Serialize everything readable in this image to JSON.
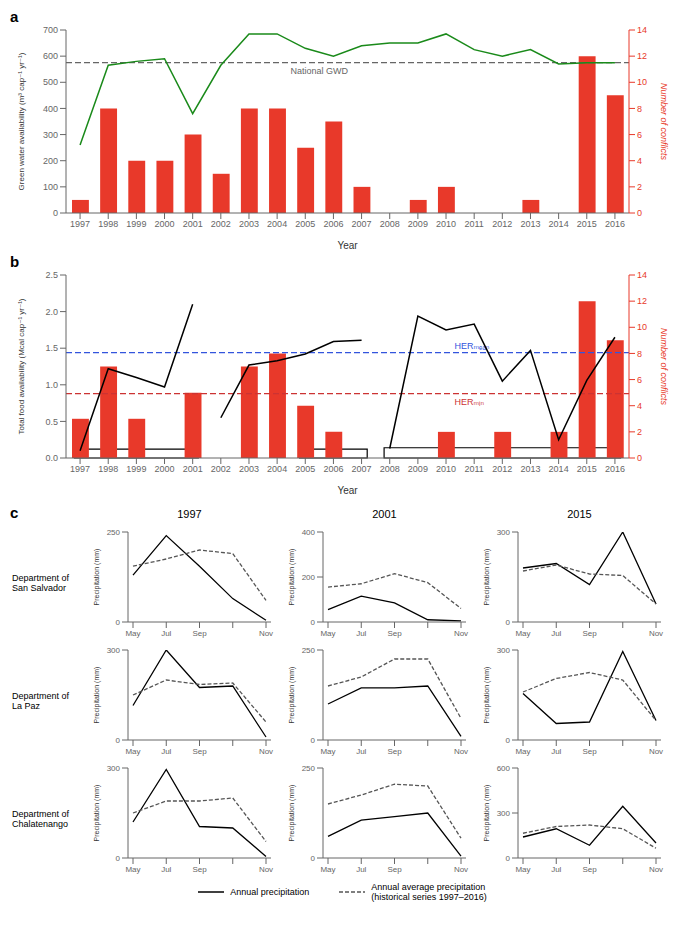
{
  "chart_data": [
    {
      "type": "bar",
      "panel_label": "a",
      "x": [
        1997,
        1998,
        1999,
        2000,
        2001,
        2002,
        2003,
        2004,
        2005,
        2006,
        2007,
        2008,
        2009,
        2010,
        2011,
        2012,
        2013,
        2014,
        2015,
        2016
      ],
      "xlim": [
        1996.5,
        2016.5
      ],
      "xticks": [
        1997,
        1998,
        1999,
        2000,
        2001,
        2002,
        2003,
        2004,
        2005,
        2006,
        2007,
        2008,
        2009,
        2010,
        2011,
        2012,
        2013,
        2014,
        2015,
        2016
      ],
      "xlabel": "Year",
      "ylabel": "Green water availability (m³ cap⁻¹ yr⁻¹)",
      "ylim": [
        0,
        700
      ],
      "yticks": [
        0,
        100,
        200,
        300,
        400,
        500,
        600,
        700
      ],
      "y2label": "Number of conflicts",
      "y2lim": [
        0,
        14
      ],
      "y2ticks": [
        0,
        2,
        4,
        6,
        8,
        10,
        12,
        14
      ],
      "series": [
        {
          "type": "bar",
          "axis": "y2",
          "color": "#e8392a",
          "values": [
            1,
            8,
            4,
            4,
            6,
            3,
            8,
            8,
            5,
            7,
            2,
            0,
            1,
            2,
            0,
            0,
            1,
            0,
            12,
            9
          ]
        },
        {
          "type": "line",
          "color": "#1a8a1a",
          "values": [
            260,
            565,
            580,
            590,
            380,
            565,
            685,
            685,
            630,
            600,
            640,
            650,
            650,
            685,
            625,
            600,
            625,
            570,
            575,
            575
          ]
        }
      ],
      "hlines": [
        {
          "value": 575,
          "color": "#666666",
          "line_style": "dashed",
          "label": "National GWD"
        }
      ]
    },
    {
      "type": "bar",
      "panel_label": "b",
      "x": [
        1997,
        1998,
        1999,
        2000,
        2001,
        2002,
        2003,
        2004,
        2005,
        2006,
        2007,
        2008,
        2009,
        2010,
        2011,
        2012,
        2013,
        2014,
        2015,
        2016
      ],
      "xlim": [
        1996.5,
        2016.5
      ],
      "xticks": [
        1997,
        1998,
        1999,
        2000,
        2001,
        2002,
        2003,
        2004,
        2005,
        2006,
        2007,
        2008,
        2009,
        2010,
        2011,
        2012,
        2013,
        2014,
        2015,
        2016
      ],
      "xlabel": "Year",
      "ylabel": "Total food availability (Mcal cap⁻¹ yr⁻¹)",
      "ylim": [
        0,
        2.5
      ],
      "yticks": [
        {
          "value": 0,
          "label": "0.0"
        },
        0.5,
        {
          "value": 1,
          "label": "1.0"
        },
        1.5,
        {
          "value": 2,
          "label": "2.0"
        },
        2.5
      ],
      "y2label": "Number of conflicts",
      "y2lim": [
        0,
        14
      ],
      "y2ticks": [
        0,
        2,
        4,
        6,
        8,
        10,
        12,
        14
      ],
      "series": [
        {
          "type": "bar",
          "axis": "y2",
          "color": "#e8392a",
          "values": [
            3,
            7,
            3,
            0,
            5,
            0,
            7,
            8,
            4,
            2,
            0,
            0,
            0,
            2,
            0,
            2,
            0,
            2,
            12,
            9
          ]
        },
        {
          "type": "line",
          "color": "#000000",
          "x": [
            1997,
            1998,
            1999,
            2000,
            2001
          ],
          "values": [
            0.1,
            1.22,
            1.1,
            0.97,
            2.1
          ]
        },
        {
          "type": "line",
          "color": "#000000",
          "x": [
            2002,
            2003,
            2004,
            2005,
            2006,
            2007
          ],
          "values": [
            0.55,
            1.27,
            1.33,
            1.42,
            1.59,
            1.61
          ]
        },
        {
          "type": "line",
          "color": "#000000",
          "x": [
            2008,
            2009,
            2010,
            2011,
            2012,
            2013,
            2014,
            2015,
            2016
          ],
          "values": [
            0.13,
            1.94,
            1.75,
            1.83,
            1.05,
            1.47,
            0.25,
            1.06,
            1.65
          ]
        }
      ],
      "hlines": [
        {
          "value": 1.44,
          "color": "#3355dd",
          "line_style": "dashed",
          "label": "HERₘₑₐₙ"
        },
        {
          "value": 0.88,
          "color": "#cc3333",
          "line_style": "dashed",
          "label": "HERₘᵢₙ"
        }
      ],
      "boxes": [
        {
          "x0": 1996.8,
          "x1": 2001.2,
          "y0": 0.0,
          "y1": 0.12,
          "color": "#000000"
        },
        {
          "x0": 2004.8,
          "x1": 2007.2,
          "y0": 0.0,
          "y1": 0.12,
          "color": "#000000"
        },
        {
          "x0": 2007.8,
          "x1": 2016.2,
          "y0": 0.0,
          "y1": 0.14,
          "color": "#000000"
        }
      ]
    },
    {
      "type": "line",
      "categories": [
        "May",
        "Jul",
        "Sep",
        null,
        "Nov"
      ],
      "ylabel": "Precipitation (mm)",
      "ylim": [
        0,
        250
      ],
      "yticks": [
        0,
        250
      ],
      "series": [
        {
          "name": "Annual precipitation",
          "color": "#000000",
          "line_style": "solid",
          "values": [
            130,
            240,
            155,
            65,
            5
          ]
        },
        {
          "name": "Annual average precipitation\n(historical series 1997–2016)",
          "color": "#555555",
          "line_style": "dashed",
          "values": [
            155,
            175,
            200,
            190,
            60
          ]
        }
      ]
    },
    {
      "type": "line",
      "categories": [
        "May",
        "Jul",
        "Sep",
        null,
        "Nov"
      ],
      "ylabel": "Precipitation (mm)",
      "ylim": [
        0,
        400
      ],
      "yticks": [
        0,
        200,
        400
      ],
      "series": [
        {
          "name": "Annual precipitation",
          "color": "#000000",
          "line_style": "solid",
          "values": [
            55,
            115,
            85,
            10,
            5
          ]
        },
        {
          "name": "Annual average precipitation\n(historical series 1997–2016)",
          "color": "#555555",
          "line_style": "dashed",
          "values": [
            155,
            170,
            215,
            175,
            60
          ]
        }
      ]
    },
    {
      "type": "line",
      "categories": [
        "May",
        "Jul",
        "Sep",
        null,
        "Nov"
      ],
      "ylabel": "Precipitation (mm)",
      "ylim": [
        0,
        300
      ],
      "yticks": [
        0,
        300
      ],
      "series": [
        {
          "name": "Annual precipitation",
          "color": "#000000",
          "line_style": "solid",
          "values": [
            180,
            195,
            125,
            300,
            60
          ]
        },
        {
          "name": "Annual average precipitation\n(historical series 1997–2016)",
          "color": "#555555",
          "line_style": "dashed",
          "values": [
            170,
            190,
            160,
            155,
            60
          ]
        }
      ]
    },
    {
      "type": "line",
      "categories": [
        "May",
        "Jul",
        "Sep",
        null,
        "Nov"
      ],
      "ylabel": "Precipitation (mm)",
      "ylim": [
        0,
        300
      ],
      "yticks": [
        0,
        300
      ],
      "series": [
        {
          "name": "Annual precipitation",
          "color": "#000000",
          "line_style": "solid",
          "values": [
            115,
            300,
            175,
            180,
            10
          ]
        },
        {
          "name": "Annual average precipitation\n(historical series 1997–2016)",
          "color": "#555555",
          "line_style": "dashed",
          "values": [
            150,
            200,
            185,
            190,
            60
          ]
        }
      ]
    },
    {
      "type": "line",
      "categories": [
        "May",
        "Jul",
        "Sep",
        null,
        "Nov"
      ],
      "ylabel": "Precipitation (mm)",
      "ylim": [
        0,
        250
      ],
      "yticks": [
        0,
        250
      ],
      "series": [
        {
          "name": "Annual precipitation",
          "color": "#000000",
          "line_style": "solid",
          "values": [
            100,
            145,
            145,
            150,
            10
          ]
        },
        {
          "name": "Annual average precipitation\n(historical series 1997–2016)",
          "color": "#555555",
          "line_style": "dashed",
          "values": [
            150,
            175,
            225,
            225,
            60
          ]
        }
      ]
    },
    {
      "type": "line",
      "categories": [
        "May",
        "Jul",
        "Sep",
        null,
        "Nov"
      ],
      "ylabel": "Precipitation (mm)",
      "ylim": [
        0,
        300
      ],
      "yticks": [
        0,
        300
      ],
      "series": [
        {
          "name": "Annual precipitation",
          "color": "#000000",
          "line_style": "solid",
          "values": [
            155,
            55,
            60,
            295,
            65
          ]
        },
        {
          "name": "Annual average precipitation\n(historical series 1997–2016)",
          "color": "#555555",
          "line_style": "dashed",
          "values": [
            160,
            205,
            225,
            200,
            65
          ]
        }
      ]
    },
    {
      "type": "line",
      "categories": [
        "May",
        "Jul",
        "Sep",
        null,
        "Nov"
      ],
      "ylabel": "Precipitation (mm)",
      "ylim": [
        0,
        300
      ],
      "yticks": [
        0,
        300
      ],
      "series": [
        {
          "name": "Annual precipitation",
          "color": "#000000",
          "line_style": "solid",
          "values": [
            120,
            295,
            105,
            100,
            5
          ]
        },
        {
          "name": "Annual average precipitation\n(historical series 1997–2016)",
          "color": "#555555",
          "line_style": "dashed",
          "values": [
            150,
            190,
            190,
            200,
            55
          ]
        }
      ]
    },
    {
      "type": "line",
      "categories": [
        "May",
        "Jul",
        "Sep",
        null,
        "Nov"
      ],
      "ylabel": "Precipitation (mm)",
      "ylim": [
        0,
        250
      ],
      "yticks": [
        0,
        250
      ],
      "series": [
        {
          "name": "Annual precipitation",
          "color": "#000000",
          "line_style": "solid",
          "values": [
            60,
            105,
            115,
            125,
            5
          ]
        },
        {
          "name": "Annual average precipitation\n(historical series 1997–2016)",
          "color": "#555555",
          "line_style": "dashed",
          "values": [
            150,
            175,
            205,
            200,
            55
          ]
        }
      ]
    },
    {
      "type": "line",
      "categories": [
        "May",
        "Jul",
        "Sep",
        null,
        "Nov"
      ],
      "ylabel": "Precipitation (mm)",
      "ylim": [
        0,
        600
      ],
      "yticks": [
        0,
        300,
        600
      ],
      "series": [
        {
          "name": "Annual precipitation",
          "color": "#000000",
          "line_style": "solid",
          "values": [
            140,
            195,
            85,
            345,
            100
          ]
        },
        {
          "name": "Annual average precipitation\n(historical series 1997–2016)",
          "color": "#555555",
          "line_style": "dashed",
          "values": [
            165,
            210,
            220,
            195,
            65
          ]
        }
      ]
    }
  ],
  "small_multiples": {
    "panel_label": "c",
    "columns": [
      "1997",
      "2001",
      "2015"
    ],
    "rows": [
      "Department of\nSan Salvador",
      "Department of\nLa Paz",
      "Department of\nChalatenango"
    ]
  }
}
